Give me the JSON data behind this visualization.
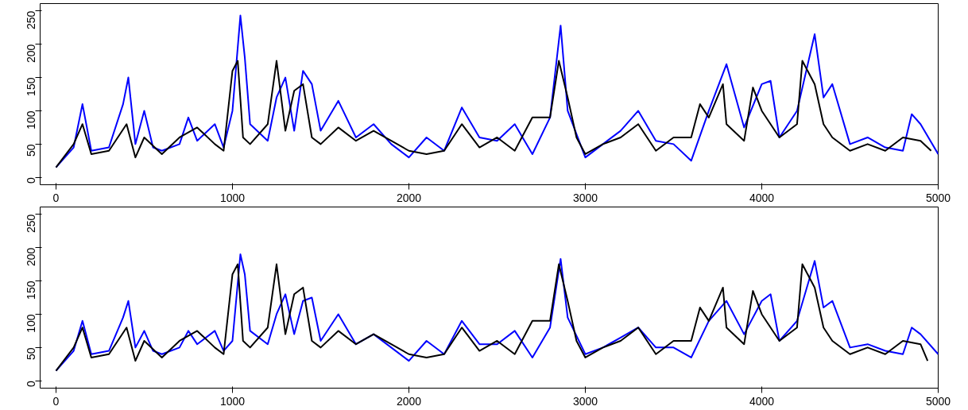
{
  "chart_data": [
    {
      "type": "line",
      "xlim": [
        -90,
        5000
      ],
      "ylim": [
        -11,
        261
      ],
      "xticks": [
        0,
        1000,
        2000,
        3000,
        4000,
        5000
      ],
      "yticks": [
        0,
        50,
        100,
        150,
        200,
        250
      ],
      "series": [
        {
          "color": "#0000ff",
          "x": [
            0,
            100,
            150,
            200,
            300,
            380,
            410,
            450,
            500,
            550,
            600,
            700,
            750,
            800,
            900,
            950,
            1000,
            1045,
            1070,
            1100,
            1200,
            1250,
            1300,
            1350,
            1400,
            1450,
            1500,
            1600,
            1700,
            1800,
            1900,
            2000,
            2100,
            2200,
            2300,
            2400,
            2500,
            2600,
            2700,
            2800,
            2860,
            2900,
            3000,
            3100,
            3200,
            3300,
            3400,
            3500,
            3600,
            3700,
            3800,
            3900,
            4000,
            4050,
            4100,
            4200,
            4300,
            4350,
            4400,
            4500,
            4600,
            4700,
            4800,
            4850,
            4900,
            5000
          ],
          "values": [
            15,
            45,
            110,
            40,
            45,
            110,
            150,
            50,
            100,
            45,
            40,
            50,
            90,
            55,
            80,
            45,
            100,
            243,
            180,
            80,
            55,
            120,
            150,
            70,
            160,
            140,
            70,
            115,
            60,
            80,
            50,
            30,
            60,
            40,
            105,
            60,
            55,
            80,
            35,
            90,
            228,
            100,
            30,
            50,
            70,
            100,
            55,
            50,
            25,
            100,
            170,
            75,
            140,
            145,
            60,
            100,
            215,
            120,
            140,
            50,
            60,
            45,
            40,
            95,
            80,
            35
          ]
        },
        {
          "color": "#000000",
          "x": [
            0,
            100,
            150,
            200,
            300,
            400,
            450,
            500,
            600,
            700,
            800,
            900,
            950,
            1000,
            1030,
            1060,
            1100,
            1200,
            1250,
            1300,
            1350,
            1400,
            1450,
            1500,
            1600,
            1700,
            1800,
            1900,
            2000,
            2100,
            2200,
            2300,
            2400,
            2500,
            2600,
            2700,
            2800,
            2850,
            2900,
            2950,
            3000,
            3100,
            3200,
            3300,
            3400,
            3500,
            3600,
            3650,
            3700,
            3780,
            3800,
            3900,
            3950,
            4000,
            4100,
            4200,
            4230,
            4300,
            4350,
            4400,
            4500,
            4600,
            4700,
            4800,
            4900,
            4960
          ],
          "values": [
            15,
            50,
            80,
            35,
            40,
            80,
            30,
            60,
            35,
            60,
            75,
            50,
            40,
            160,
            175,
            60,
            50,
            80,
            175,
            70,
            130,
            140,
            60,
            50,
            75,
            55,
            70,
            55,
            40,
            35,
            40,
            80,
            45,
            60,
            40,
            90,
            90,
            175,
            120,
            60,
            35,
            50,
            60,
            80,
            40,
            60,
            60,
            110,
            90,
            140,
            80,
            55,
            135,
            100,
            60,
            80,
            175,
            140,
            80,
            60,
            40,
            50,
            40,
            60,
            55,
            40
          ]
        }
      ]
    },
    {
      "type": "line",
      "xlim": [
        -90,
        5000
      ],
      "ylim": [
        -11,
        261
      ],
      "xticks": [
        0,
        1000,
        2000,
        3000,
        4000,
        5000
      ],
      "yticks": [
        0,
        50,
        100,
        150,
        200,
        250
      ],
      "series": [
        {
          "color": "#0000ff",
          "x": [
            0,
            100,
            150,
            200,
            300,
            380,
            410,
            450,
            500,
            550,
            600,
            700,
            750,
            800,
            900,
            950,
            1000,
            1045,
            1070,
            1100,
            1200,
            1250,
            1300,
            1350,
            1400,
            1450,
            1500,
            1600,
            1700,
            1800,
            1900,
            2000,
            2100,
            2200,
            2300,
            2400,
            2500,
            2600,
            2700,
            2800,
            2860,
            2900,
            3000,
            3100,
            3200,
            3300,
            3400,
            3500,
            3600,
            3700,
            3800,
            3900,
            4000,
            4050,
            4100,
            4200,
            4300,
            4350,
            4400,
            4500,
            4600,
            4700,
            4800,
            4850,
            4900,
            5000
          ],
          "values": [
            15,
            45,
            90,
            40,
            45,
            95,
            120,
            50,
            75,
            45,
            40,
            50,
            75,
            55,
            75,
            45,
            60,
            190,
            160,
            75,
            55,
            100,
            130,
            70,
            120,
            125,
            60,
            100,
            55,
            70,
            50,
            30,
            60,
            40,
            90,
            55,
            55,
            75,
            35,
            80,
            183,
            95,
            40,
            50,
            65,
            80,
            50,
            50,
            35,
            90,
            120,
            70,
            120,
            130,
            60,
            90,
            180,
            110,
            120,
            50,
            55,
            45,
            40,
            80,
            70,
            40
          ]
        },
        {
          "color": "#000000",
          "x": [
            0,
            100,
            150,
            200,
            300,
            400,
            450,
            500,
            600,
            700,
            800,
            900,
            950,
            1000,
            1030,
            1060,
            1100,
            1200,
            1250,
            1300,
            1350,
            1400,
            1450,
            1500,
            1600,
            1700,
            1800,
            1900,
            2000,
            2100,
            2200,
            2300,
            2400,
            2500,
            2600,
            2700,
            2800,
            2850,
            2900,
            2950,
            3000,
            3100,
            3200,
            3300,
            3400,
            3500,
            3600,
            3650,
            3700,
            3780,
            3800,
            3900,
            3950,
            4000,
            4100,
            4200,
            4230,
            4300,
            4350,
            4400,
            4500,
            4600,
            4700,
            4800,
            4900,
            4940
          ],
          "values": [
            15,
            50,
            80,
            35,
            40,
            80,
            30,
            60,
            35,
            60,
            75,
            50,
            40,
            160,
            175,
            60,
            50,
            80,
            175,
            70,
            130,
            140,
            60,
            50,
            75,
            55,
            70,
            55,
            40,
            35,
            40,
            80,
            45,
            60,
            40,
            90,
            90,
            175,
            120,
            60,
            35,
            50,
            60,
            80,
            40,
            60,
            60,
            110,
            90,
            140,
            80,
            55,
            135,
            100,
            60,
            80,
            175,
            140,
            80,
            60,
            40,
            50,
            40,
            60,
            55,
            30
          ]
        }
      ]
    }
  ]
}
